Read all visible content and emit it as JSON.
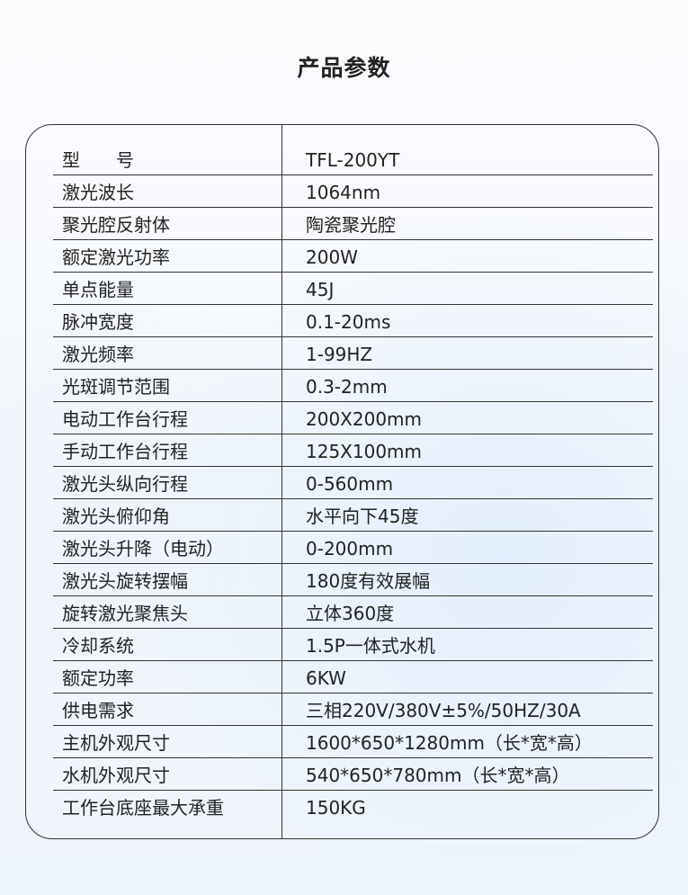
{
  "title": "产品参数",
  "params": [
    {
      "label": "型　　号",
      "value": "TFL-200YT"
    },
    {
      "label": "激光波长",
      "value": "1064nm"
    },
    {
      "label": "聚光腔反射体",
      "value": "陶瓷聚光腔"
    },
    {
      "label": "额定激光功率",
      "value": "200W"
    },
    {
      "label": "单点能量",
      "value": "45J"
    },
    {
      "label": "脉冲宽度",
      "value": "0.1-20ms"
    },
    {
      "label": "激光频率",
      "value": "1-99HZ"
    },
    {
      "label": "光斑调节范围",
      "value": "0.3-2mm"
    },
    {
      "label": "电动工作台行程",
      "value": "200X200mm"
    },
    {
      "label": "手动工作台行程",
      "value": "125X100mm"
    },
    {
      "label": "激光头纵向行程",
      "value": "0-560mm"
    },
    {
      "label": "激光头俯仰角",
      "value": "水平向下45度"
    },
    {
      "label": "激光头升降（电动）",
      "value": "0-200mm"
    },
    {
      "label": "激光头旋转摆幅",
      "value": "180度有效展幅"
    },
    {
      "label": "旋转激光聚焦头",
      "value": "立体360度"
    },
    {
      "label": "冷却系统",
      "value": "1.5P一体式水机"
    },
    {
      "label": "额定功率",
      "value": "6KW"
    },
    {
      "label": "供电需求",
      "value": "三相220V/380V±5%/50HZ/30A"
    },
    {
      "label": "主机外观尺寸",
      "value": "1600*650*1280mm（长*宽*高）"
    },
    {
      "label": "水机外观尺寸",
      "value": "540*650*780mm（长*宽*高）"
    },
    {
      "label": "工作台底座最大承重",
      "value": "150KG"
    }
  ]
}
